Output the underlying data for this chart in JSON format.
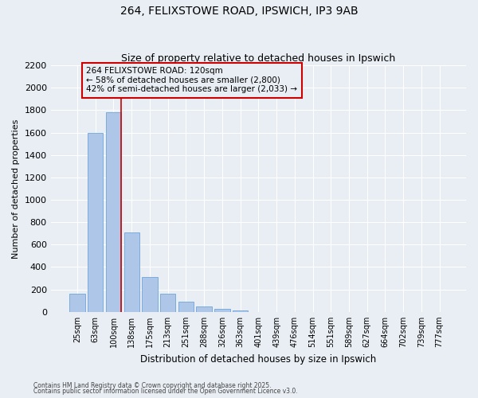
{
  "title1": "264, FELIXSTOWE ROAD, IPSWICH, IP3 9AB",
  "title2": "Size of property relative to detached houses in Ipswich",
  "xlabel": "Distribution of detached houses by size in Ipswich",
  "ylabel": "Number of detached properties",
  "categories": [
    "25sqm",
    "63sqm",
    "100sqm",
    "138sqm",
    "175sqm",
    "213sqm",
    "251sqm",
    "288sqm",
    "326sqm",
    "363sqm",
    "401sqm",
    "439sqm",
    "476sqm",
    "514sqm",
    "551sqm",
    "589sqm",
    "627sqm",
    "664sqm",
    "702sqm",
    "739sqm",
    "777sqm"
  ],
  "values": [
    160,
    1600,
    1780,
    710,
    310,
    160,
    90,
    50,
    25,
    15,
    0,
    0,
    0,
    0,
    0,
    0,
    0,
    0,
    0,
    0,
    0
  ],
  "bar_color": "#aec6e8",
  "bar_edge_color": "#5b9bd5",
  "bg_color": "#e8eef4",
  "grid_color": "#ffffff",
  "vline_color": "#cc0000",
  "vline_x": 2.4,
  "annotation_text": "264 FELIXSTOWE ROAD: 120sqm\n← 58% of detached houses are smaller (2,800)\n42% of semi-detached houses are larger (2,033) →",
  "annotation_box_color": "#cc0000",
  "ylim": [
    0,
    2200
  ],
  "yticks": [
    0,
    200,
    400,
    600,
    800,
    1000,
    1200,
    1400,
    1600,
    1800,
    2000,
    2200
  ],
  "footnote1": "Contains HM Land Registry data © Crown copyright and database right 2025.",
  "footnote2": "Contains public sector information licensed under the Open Government Licence v3.0."
}
